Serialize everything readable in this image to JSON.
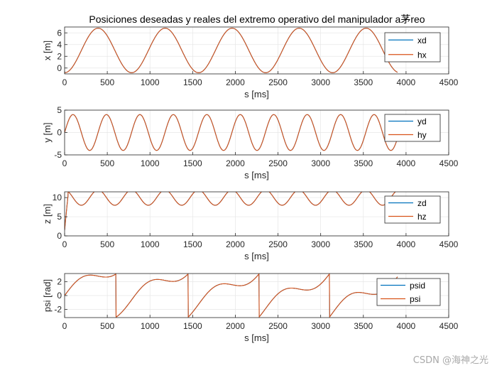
{
  "title": "Posiciones deseadas y reales del extremo operativo del manipulador a茅reo",
  "watermark": "CSDN @海神之光",
  "colors": {
    "desired": "#0072BD",
    "real": "#D95319",
    "grid": "#e6e6e6",
    "axis": "#262626"
  },
  "chart_data": [
    {
      "type": "line",
      "xlabel": "s [ms]",
      "ylabel": "x [m]",
      "xlim": [
        0,
        4500
      ],
      "ylim": [
        -1,
        7
      ],
      "xticks": [
        0,
        500,
        1000,
        1500,
        2000,
        2500,
        3000,
        3500,
        4000,
        4500
      ],
      "yticks": [
        0,
        2,
        4,
        6
      ],
      "legend": [
        "xd",
        "hx"
      ],
      "legend_position": "top-right",
      "t_end": 3900,
      "model": {
        "kind": "sine",
        "offset": 3,
        "amp": 3.8,
        "period": 785,
        "phase": -1.5708
      }
    },
    {
      "type": "line",
      "xlabel": "s [ms]",
      "ylabel": "y [m]",
      "xlim": [
        0,
        4500
      ],
      "ylim": [
        -5,
        5
      ],
      "xticks": [
        0,
        500,
        1000,
        1500,
        2000,
        2500,
        3000,
        3500,
        4000,
        4500
      ],
      "yticks": [
        -5,
        0,
        5
      ],
      "legend": [
        "yd",
        "hy"
      ],
      "legend_position": "top-right",
      "t_end": 3900,
      "model": {
        "kind": "sine",
        "offset": 0,
        "amp": 4,
        "period": 392,
        "phase": 0
      }
    },
    {
      "type": "line",
      "xlabel": "s [ms]",
      "ylabel": "z [m]",
      "xlim": [
        0,
        4500
      ],
      "ylim": [
        0,
        11.5
      ],
      "xticks": [
        0,
        500,
        1000,
        1500,
        2000,
        2500,
        3000,
        3500,
        4000,
        4500
      ],
      "yticks": [
        0,
        5,
        10
      ],
      "legend": [
        "zd",
        "hz"
      ],
      "legend_position": "top-right",
      "t_end": 3900,
      "model": {
        "kind": "cosine",
        "offset": 10,
        "amp": 2,
        "period": 392,
        "phase": 0,
        "rise": 40
      }
    },
    {
      "type": "line",
      "xlabel": "s [ms]",
      "ylabel": "psi [rad]",
      "xlim": [
        0,
        4500
      ],
      "ylim": [
        -3.2,
        3.2
      ],
      "xticks": [
        0,
        500,
        1000,
        1500,
        2000,
        2500,
        3000,
        3500,
        4000,
        4500
      ],
      "yticks": [
        -2,
        0,
        2
      ],
      "legend": [
        "psid",
        "psi"
      ],
      "legend_position": "top-right",
      "t_end": 3900,
      "model": {
        "kind": "wrapped-atan",
        "period": 785
      }
    }
  ]
}
